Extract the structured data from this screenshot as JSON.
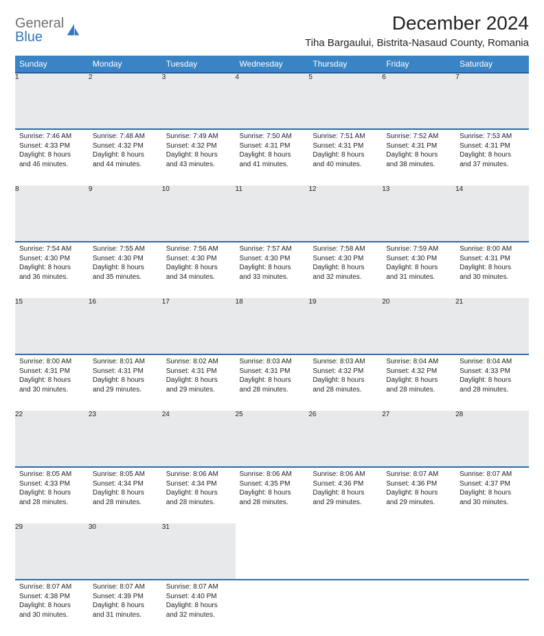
{
  "brand": {
    "part1": "General",
    "part2": "Blue"
  },
  "title": "December 2024",
  "location": "Tiha Bargaului, Bistrita-Nasaud County, Romania",
  "colors": {
    "header_bg": "#3a84c5",
    "header_text": "#ffffff",
    "daynum_bg": "#e7e9eb",
    "rule": "#2b6aa3",
    "text": "#222222",
    "logo_gray": "#6f6f6f",
    "logo_blue": "#2f78bf",
    "background": "#ffffff"
  },
  "layout": {
    "columns": 7,
    "rows": 5,
    "cell_font_size_pt": 7.5,
    "header_font_size_pt": 9,
    "title_font_size_pt": 21
  },
  "day_headers": [
    "Sunday",
    "Monday",
    "Tuesday",
    "Wednesday",
    "Thursday",
    "Friday",
    "Saturday"
  ],
  "weeks": [
    [
      {
        "n": "1",
        "sr": "Sunrise: 7:46 AM",
        "ss": "Sunset: 4:33 PM",
        "d1": "Daylight: 8 hours",
        "d2": "and 46 minutes."
      },
      {
        "n": "2",
        "sr": "Sunrise: 7:48 AM",
        "ss": "Sunset: 4:32 PM",
        "d1": "Daylight: 8 hours",
        "d2": "and 44 minutes."
      },
      {
        "n": "3",
        "sr": "Sunrise: 7:49 AM",
        "ss": "Sunset: 4:32 PM",
        "d1": "Daylight: 8 hours",
        "d2": "and 43 minutes."
      },
      {
        "n": "4",
        "sr": "Sunrise: 7:50 AM",
        "ss": "Sunset: 4:31 PM",
        "d1": "Daylight: 8 hours",
        "d2": "and 41 minutes."
      },
      {
        "n": "5",
        "sr": "Sunrise: 7:51 AM",
        "ss": "Sunset: 4:31 PM",
        "d1": "Daylight: 8 hours",
        "d2": "and 40 minutes."
      },
      {
        "n": "6",
        "sr": "Sunrise: 7:52 AM",
        "ss": "Sunset: 4:31 PM",
        "d1": "Daylight: 8 hours",
        "d2": "and 38 minutes."
      },
      {
        "n": "7",
        "sr": "Sunrise: 7:53 AM",
        "ss": "Sunset: 4:31 PM",
        "d1": "Daylight: 8 hours",
        "d2": "and 37 minutes."
      }
    ],
    [
      {
        "n": "8",
        "sr": "Sunrise: 7:54 AM",
        "ss": "Sunset: 4:30 PM",
        "d1": "Daylight: 8 hours",
        "d2": "and 36 minutes."
      },
      {
        "n": "9",
        "sr": "Sunrise: 7:55 AM",
        "ss": "Sunset: 4:30 PM",
        "d1": "Daylight: 8 hours",
        "d2": "and 35 minutes."
      },
      {
        "n": "10",
        "sr": "Sunrise: 7:56 AM",
        "ss": "Sunset: 4:30 PM",
        "d1": "Daylight: 8 hours",
        "d2": "and 34 minutes."
      },
      {
        "n": "11",
        "sr": "Sunrise: 7:57 AM",
        "ss": "Sunset: 4:30 PM",
        "d1": "Daylight: 8 hours",
        "d2": "and 33 minutes."
      },
      {
        "n": "12",
        "sr": "Sunrise: 7:58 AM",
        "ss": "Sunset: 4:30 PM",
        "d1": "Daylight: 8 hours",
        "d2": "and 32 minutes."
      },
      {
        "n": "13",
        "sr": "Sunrise: 7:59 AM",
        "ss": "Sunset: 4:30 PM",
        "d1": "Daylight: 8 hours",
        "d2": "and 31 minutes."
      },
      {
        "n": "14",
        "sr": "Sunrise: 8:00 AM",
        "ss": "Sunset: 4:31 PM",
        "d1": "Daylight: 8 hours",
        "d2": "and 30 minutes."
      }
    ],
    [
      {
        "n": "15",
        "sr": "Sunrise: 8:00 AM",
        "ss": "Sunset: 4:31 PM",
        "d1": "Daylight: 8 hours",
        "d2": "and 30 minutes."
      },
      {
        "n": "16",
        "sr": "Sunrise: 8:01 AM",
        "ss": "Sunset: 4:31 PM",
        "d1": "Daylight: 8 hours",
        "d2": "and 29 minutes."
      },
      {
        "n": "17",
        "sr": "Sunrise: 8:02 AM",
        "ss": "Sunset: 4:31 PM",
        "d1": "Daylight: 8 hours",
        "d2": "and 29 minutes."
      },
      {
        "n": "18",
        "sr": "Sunrise: 8:03 AM",
        "ss": "Sunset: 4:31 PM",
        "d1": "Daylight: 8 hours",
        "d2": "and 28 minutes."
      },
      {
        "n": "19",
        "sr": "Sunrise: 8:03 AM",
        "ss": "Sunset: 4:32 PM",
        "d1": "Daylight: 8 hours",
        "d2": "and 28 minutes."
      },
      {
        "n": "20",
        "sr": "Sunrise: 8:04 AM",
        "ss": "Sunset: 4:32 PM",
        "d1": "Daylight: 8 hours",
        "d2": "and 28 minutes."
      },
      {
        "n": "21",
        "sr": "Sunrise: 8:04 AM",
        "ss": "Sunset: 4:33 PM",
        "d1": "Daylight: 8 hours",
        "d2": "and 28 minutes."
      }
    ],
    [
      {
        "n": "22",
        "sr": "Sunrise: 8:05 AM",
        "ss": "Sunset: 4:33 PM",
        "d1": "Daylight: 8 hours",
        "d2": "and 28 minutes."
      },
      {
        "n": "23",
        "sr": "Sunrise: 8:05 AM",
        "ss": "Sunset: 4:34 PM",
        "d1": "Daylight: 8 hours",
        "d2": "and 28 minutes."
      },
      {
        "n": "24",
        "sr": "Sunrise: 8:06 AM",
        "ss": "Sunset: 4:34 PM",
        "d1": "Daylight: 8 hours",
        "d2": "and 28 minutes."
      },
      {
        "n": "25",
        "sr": "Sunrise: 8:06 AM",
        "ss": "Sunset: 4:35 PM",
        "d1": "Daylight: 8 hours",
        "d2": "and 28 minutes."
      },
      {
        "n": "26",
        "sr": "Sunrise: 8:06 AM",
        "ss": "Sunset: 4:36 PM",
        "d1": "Daylight: 8 hours",
        "d2": "and 29 minutes."
      },
      {
        "n": "27",
        "sr": "Sunrise: 8:07 AM",
        "ss": "Sunset: 4:36 PM",
        "d1": "Daylight: 8 hours",
        "d2": "and 29 minutes."
      },
      {
        "n": "28",
        "sr": "Sunrise: 8:07 AM",
        "ss": "Sunset: 4:37 PM",
        "d1": "Daylight: 8 hours",
        "d2": "and 30 minutes."
      }
    ],
    [
      {
        "n": "29",
        "sr": "Sunrise: 8:07 AM",
        "ss": "Sunset: 4:38 PM",
        "d1": "Daylight: 8 hours",
        "d2": "and 30 minutes."
      },
      {
        "n": "30",
        "sr": "Sunrise: 8:07 AM",
        "ss": "Sunset: 4:39 PM",
        "d1": "Daylight: 8 hours",
        "d2": "and 31 minutes."
      },
      {
        "n": "31",
        "sr": "Sunrise: 8:07 AM",
        "ss": "Sunset: 4:40 PM",
        "d1": "Daylight: 8 hours",
        "d2": "and 32 minutes."
      },
      null,
      null,
      null,
      null
    ]
  ]
}
